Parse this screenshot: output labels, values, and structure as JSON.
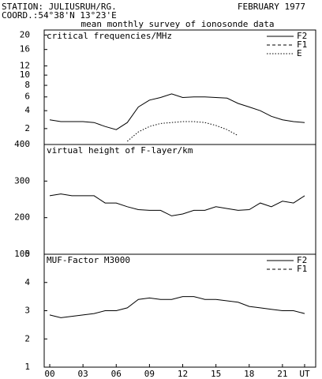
{
  "header": {
    "station": "STATION: JULIUSRUH/RG.",
    "date": "FEBRUARY 1977",
    "coord": "COORD.:54°38'N 13°23'E",
    "subtitle": "mean monthly survey of ionosonde data"
  },
  "chart_data": [
    {
      "type": "line",
      "title": "critical frequencies/MHz",
      "yscale": "sqrt",
      "x": [
        0,
        1,
        2,
        3,
        4,
        5,
        6,
        7,
        8,
        9,
        10,
        11,
        12,
        13,
        14,
        15,
        16,
        17,
        18,
        19,
        20,
        21,
        22,
        23
      ],
      "xlim": [
        -0.5,
        24
      ],
      "ylim": [
        0.8,
        21.5
      ],
      "yticks": [
        2,
        4,
        6,
        8,
        10,
        12,
        16,
        20
      ],
      "legend": "upper right",
      "series": [
        {
          "name": "F2",
          "color": "#000000",
          "linestyle": "solid",
          "values": [
            2.9,
            2.7,
            2.7,
            2.7,
            2.6,
            2.2,
            1.9,
            2.6,
            4.5,
            5.5,
            5.9,
            6.5,
            5.9,
            6.0,
            6.0,
            5.9,
            5.8,
            5.0,
            4.5,
            4.0,
            3.3,
            2.9,
            2.7,
            2.6
          ]
        },
        {
          "name": "F1",
          "color": "#000000",
          "linestyle": "dashed",
          "values": [
            null,
            null,
            null,
            null,
            null,
            null,
            null,
            null,
            null,
            null,
            null,
            null,
            null,
            null,
            null,
            null,
            null,
            null,
            null,
            null,
            null,
            null,
            null,
            null
          ]
        },
        {
          "name": "E",
          "color": "#000000",
          "linestyle": "dotted",
          "values": [
            null,
            null,
            null,
            null,
            null,
            null,
            null,
            1.0,
            1.7,
            2.2,
            2.5,
            2.6,
            2.7,
            2.7,
            2.6,
            2.3,
            1.9,
            1.4,
            null,
            null,
            null,
            null,
            null,
            null
          ]
        }
      ]
    },
    {
      "type": "line",
      "title": "virtual height of F-layer/km",
      "x": [
        0,
        1,
        2,
        3,
        4,
        5,
        6,
        7,
        8,
        9,
        10,
        11,
        12,
        13,
        14,
        15,
        16,
        17,
        18,
        19,
        20,
        21,
        22,
        23
      ],
      "xlim": [
        -0.5,
        24
      ],
      "ylim": [
        100,
        400
      ],
      "yticks": [
        100,
        200,
        300,
        400
      ],
      "series": [
        {
          "color": "#000000",
          "linestyle": "solid",
          "values": [
            260,
            265,
            260,
            260,
            260,
            240,
            240,
            230,
            222,
            220,
            220,
            205,
            210,
            220,
            220,
            230,
            225,
            220,
            222,
            240,
            230,
            245,
            240,
            260
          ]
        }
      ]
    },
    {
      "type": "line",
      "title": "MUF-Factor M3000",
      "x": [
        0,
        1,
        2,
        3,
        4,
        5,
        6,
        7,
        8,
        9,
        10,
        11,
        12,
        13,
        14,
        15,
        16,
        17,
        18,
        19,
        20,
        21,
        22,
        23
      ],
      "xlim": [
        -0.5,
        24
      ],
      "ylim": [
        1,
        5
      ],
      "yticks": [
        1,
        2,
        3,
        4,
        5
      ],
      "xticks": [
        {
          "value": 0,
          "label": "00"
        },
        {
          "value": 3,
          "label": "03"
        },
        {
          "value": 6,
          "label": "06"
        },
        {
          "value": 9,
          "label": "09"
        },
        12,
        15,
        18,
        21,
        {
          "value": 23,
          "label": "UT"
        }
      ],
      "legend": "upper right",
      "series": [
        {
          "name": "F2",
          "color": "#000000",
          "linestyle": "solid",
          "values": [
            2.85,
            2.75,
            2.8,
            2.85,
            2.9,
            3.0,
            3.0,
            3.1,
            3.4,
            3.45,
            3.4,
            3.4,
            3.5,
            3.5,
            3.4,
            3.4,
            3.35,
            3.3,
            3.15,
            3.1,
            3.05,
            3.0,
            3.0,
            2.9
          ]
        },
        {
          "name": "F1",
          "color": "#000000",
          "linestyle": "dashed",
          "values": [
            null,
            null,
            null,
            null,
            null,
            null,
            null,
            null,
            null,
            null,
            null,
            null,
            null,
            null,
            null,
            null,
            null,
            null,
            null,
            null,
            null,
            null,
            null,
            null
          ]
        }
      ]
    }
  ]
}
